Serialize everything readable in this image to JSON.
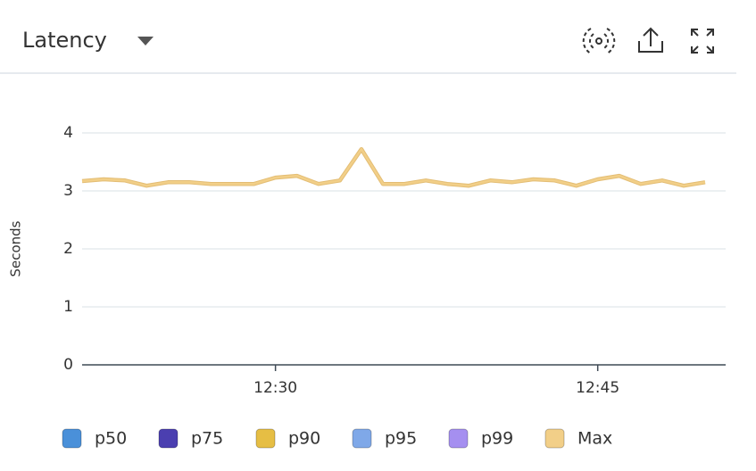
{
  "header": {
    "title": "Latency"
  },
  "chart_data": {
    "type": "line",
    "y_label": "Seconds",
    "categories": [
      null,
      null,
      null,
      null,
      null,
      null,
      null,
      null,
      null,
      "12:30",
      null,
      null,
      null,
      null,
      null,
      null,
      null,
      null,
      null,
      null,
      null,
      null,
      null,
      null,
      "12:45",
      null,
      null,
      null,
      null,
      null
    ],
    "ylim": [
      0,
      4
    ],
    "yticks": [
      0,
      1,
      2,
      3,
      4
    ],
    "grid": true,
    "series": [
      {
        "name": "p50",
        "color": "#4a90d9"
      },
      {
        "name": "p75",
        "color": "#4b3fb0"
      },
      {
        "name": "p90",
        "color": "#e6be44"
      },
      {
        "name": "p95",
        "color": "#7fa8e8"
      },
      {
        "name": "p99",
        "color": "#a58ff0"
      },
      {
        "name": "Max",
        "color": "#f2cf88",
        "values": [
          3.17,
          3.2,
          3.18,
          3.09,
          3.15,
          3.15,
          3.12,
          3.12,
          3.12,
          3.23,
          3.26,
          3.12,
          3.18,
          3.72,
          3.12,
          3.12,
          3.18,
          3.12,
          3.09,
          3.18,
          3.15,
          3.2,
          3.18,
          3.09,
          3.2,
          3.26,
          3.12,
          3.18,
          3.09,
          3.15
        ]
      }
    ]
  }
}
